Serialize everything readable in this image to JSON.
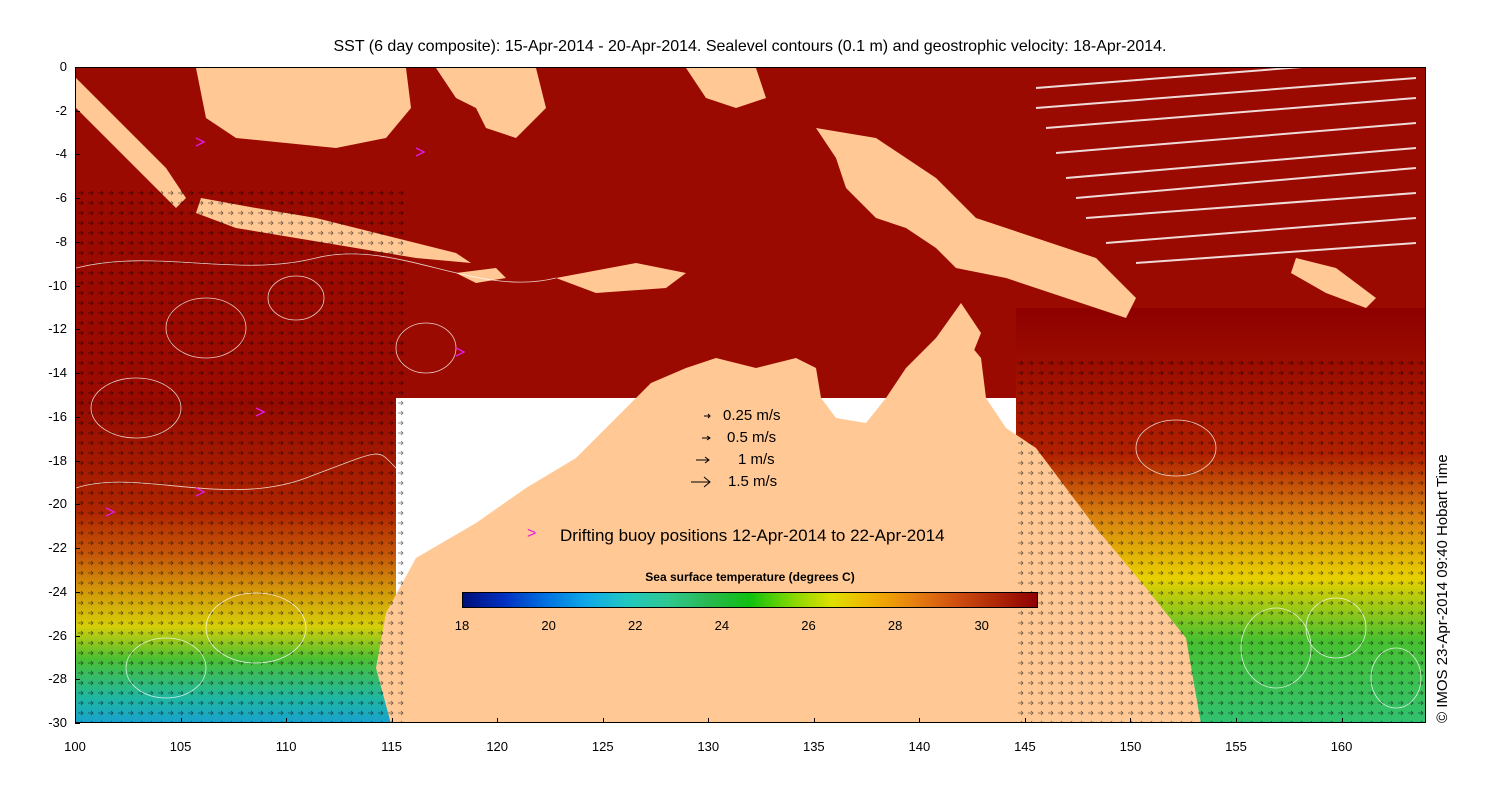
{
  "title": "SST (6 day composite): 15-Apr-2014 - 20-Apr-2014. Sealevel contours (0.1 m) and geostrophic velocity: 18-Apr-2014.",
  "credit": "© IMOS 23-Apr-2014 09:40 Hobart Time",
  "axes": {
    "x_ticks": [
      "100",
      "105",
      "110",
      "115",
      "120",
      "125",
      "130",
      "135",
      "140",
      "145",
      "150",
      "155",
      "160"
    ],
    "y_ticks": [
      "0",
      "-2",
      "-4",
      "-6",
      "-8",
      "-10",
      "-12",
      "-14",
      "-16",
      "-18",
      "-20",
      "-22",
      "-24",
      "-26",
      "-28",
      "-30"
    ],
    "x_range": [
      100,
      164
    ],
    "y_range": [
      -30,
      0
    ]
  },
  "velocity_legend": [
    {
      "label": "0.25 m/s",
      "speed": 0.25
    },
    {
      "label": "0.5 m/s",
      "speed": 0.5
    },
    {
      "label": "1 m/s",
      "speed": 1
    },
    {
      "label": "1.5 m/s",
      "speed": 1.5
    }
  ],
  "buoy_legend": {
    "glyph": ">",
    "label": "Drifting buoy positions 12-Apr-2014 to 22-Apr-2014",
    "color": "#e21ae2"
  },
  "colorbar": {
    "title": "Sea surface temperature (degrees C)",
    "ticks": [
      "18",
      "20",
      "22",
      "24",
      "26",
      "28",
      "30"
    ],
    "range": [
      18,
      31.3
    ]
  },
  "colors": {
    "land": "#ffc895",
    "ocean_warm": "#a81400",
    "ocean_hot": "#8e0000",
    "ocean_orange": "#d06010",
    "ocean_yellow": "#e8c800",
    "ocean_green": "#3cc028",
    "ocean_cyan": "#20b8a0"
  }
}
